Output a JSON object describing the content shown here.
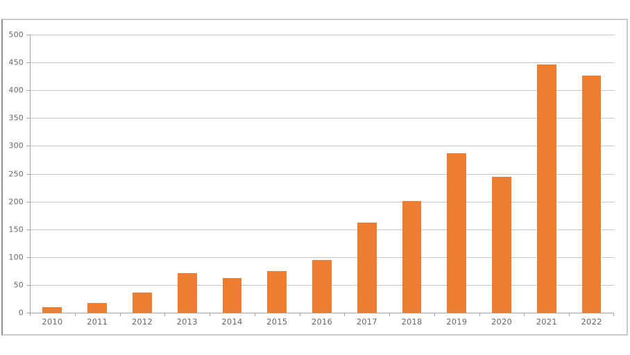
{
  "chart_data": {
    "type": "bar",
    "title": "",
    "xlabel": "",
    "ylabel": "",
    "categories": [
      "2010",
      "2011",
      "2012",
      "2013",
      "2014",
      "2015",
      "2016",
      "2017",
      "2018",
      "2019",
      "2020",
      "2021",
      "2022"
    ],
    "values": [
      10,
      17,
      36,
      71,
      62,
      75,
      95,
      162,
      201,
      287,
      245,
      447,
      426
    ],
    "ylim": [
      0,
      500
    ],
    "yticks": [
      0,
      50,
      100,
      150,
      200,
      250,
      300,
      350,
      400,
      450,
      500
    ],
    "grid": "horizontal",
    "legend_position": "none",
    "bar_color": "#ED7D31"
  },
  "colors": {
    "bar": "#ED7D31",
    "gridline": "#c6c6c6",
    "axis": "#a3a3a3",
    "tick_label": "#686868",
    "frame_border": "#cbcbcb",
    "frame_border_left": "#8f8f8f",
    "background": "#ffffff"
  }
}
